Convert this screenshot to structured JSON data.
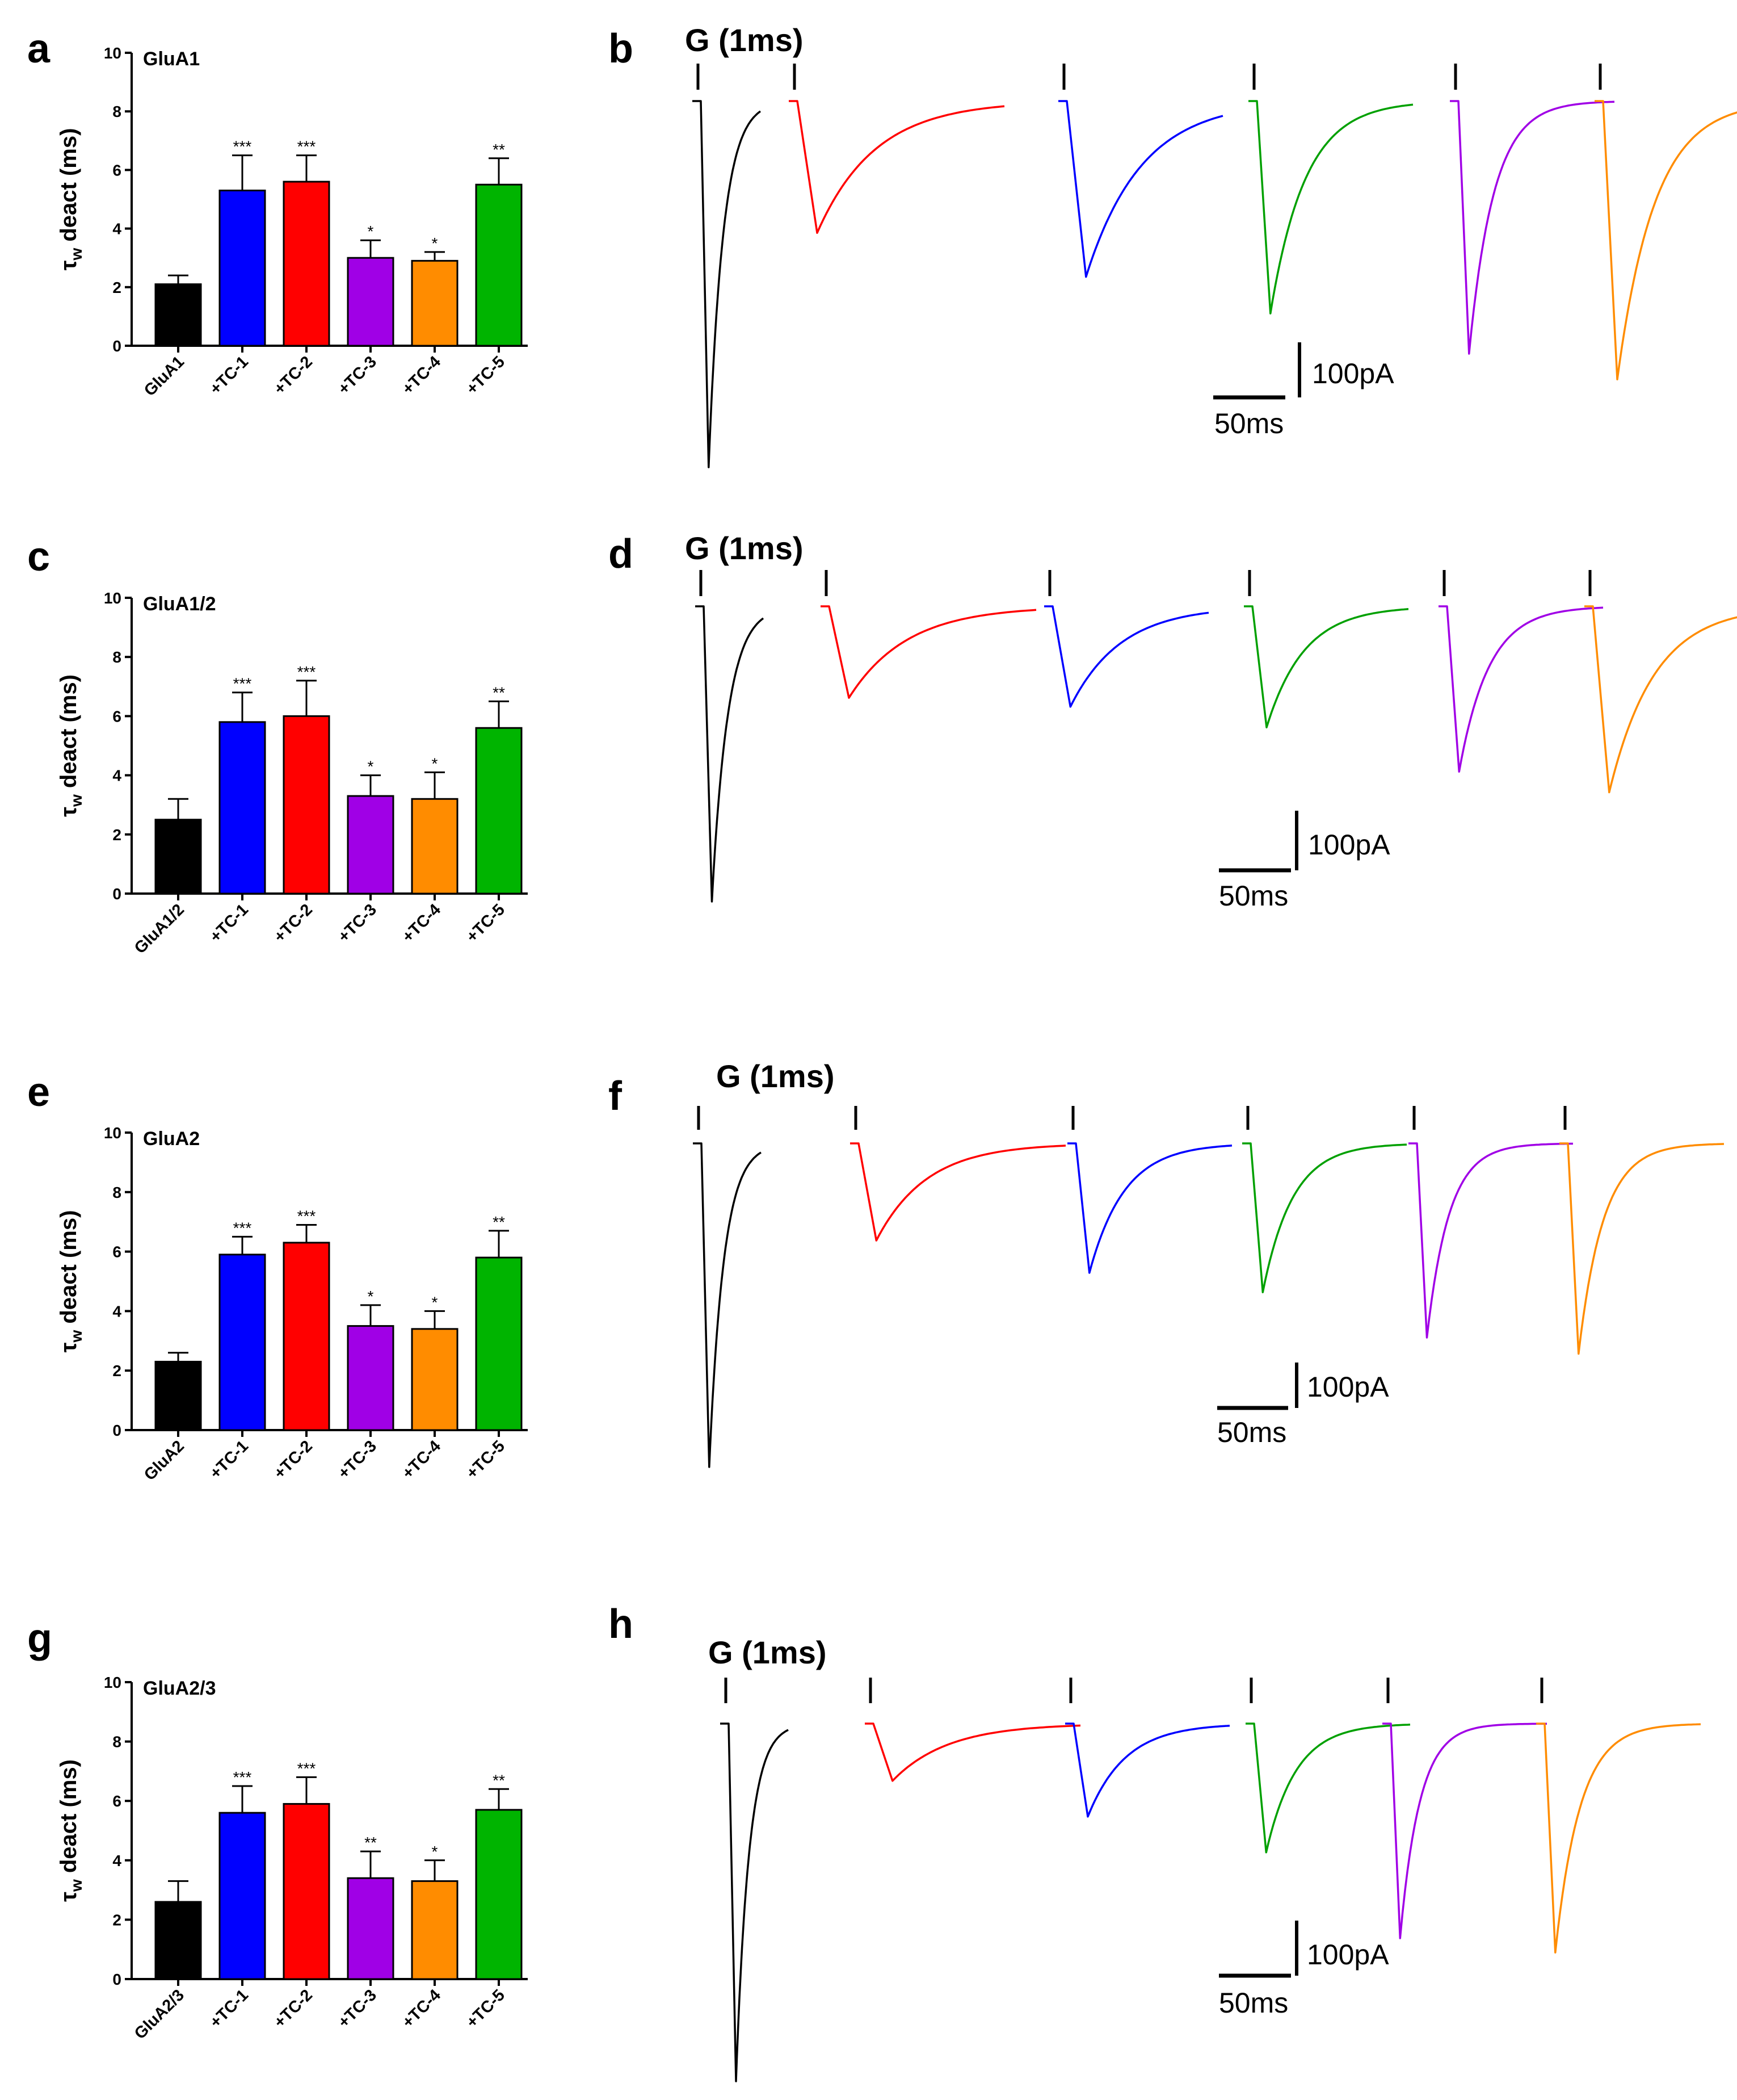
{
  "chart_data": [
    {
      "panel": "a",
      "type": "bar",
      "title": "GluA1",
      "ylabel": "τw deact (ms)",
      "ylabel_main": "τ",
      "ylabel_sub": "w",
      "ylabel_rest": " deact (ms)",
      "ylim": [
        0,
        10
      ],
      "yticks": [
        "0",
        "2",
        "4",
        "6",
        "8",
        "10"
      ],
      "categories": [
        "GluA1",
        "+TC-1",
        "+TC-2",
        "+TC-3",
        "+TC-4",
        "+TC-5"
      ],
      "values": [
        2.1,
        5.3,
        5.6,
        3.0,
        2.9,
        5.5
      ],
      "errors": [
        0.3,
        1.2,
        0.9,
        0.6,
        0.3,
        0.9
      ],
      "significance": [
        "",
        "***",
        "***",
        "*",
        "*",
        "**"
      ],
      "colors": [
        "#000000",
        "#0000ff",
        "#ff0000",
        "#a000e6",
        "#ff8c00",
        "#00b400"
      ]
    },
    {
      "panel": "c",
      "type": "bar",
      "title": "GluA1/2",
      "ylabel": "τw deact (ms)",
      "ylabel_main": "τ",
      "ylabel_sub": "w",
      "ylabel_rest": " deact (ms)",
      "ylim": [
        0,
        10
      ],
      "yticks": [
        "0",
        "2",
        "4",
        "6",
        "8",
        "10"
      ],
      "categories": [
        "GluA1/2",
        "+TC-1",
        "+TC-2",
        "+TC-3",
        "+TC-4",
        "+TC-5"
      ],
      "values": [
        2.5,
        5.8,
        6.0,
        3.3,
        3.2,
        5.6
      ],
      "errors": [
        0.7,
        1.0,
        1.2,
        0.7,
        0.9,
        0.9
      ],
      "significance": [
        "",
        "***",
        "***",
        "*",
        "*",
        "**"
      ],
      "colors": [
        "#000000",
        "#0000ff",
        "#ff0000",
        "#a000e6",
        "#ff8c00",
        "#00b400"
      ]
    },
    {
      "panel": "e",
      "type": "bar",
      "title": "GluA2",
      "ylabel": "τw deact (ms)",
      "ylabel_main": "τ",
      "ylabel_sub": "w",
      "ylabel_rest": " deact (ms)",
      "ylim": [
        0,
        10
      ],
      "yticks": [
        "0",
        "2",
        "4",
        "6",
        "8",
        "10"
      ],
      "categories": [
        "GluA2",
        "+TC-1",
        "+TC-2",
        "+TC-3",
        "+TC-4",
        "+TC-5"
      ],
      "values": [
        2.3,
        5.9,
        6.3,
        3.5,
        3.4,
        5.8
      ],
      "errors": [
        0.3,
        0.6,
        0.6,
        0.7,
        0.6,
        0.9
      ],
      "significance": [
        "",
        "***",
        "***",
        "*",
        "*",
        "**"
      ],
      "colors": [
        "#000000",
        "#0000ff",
        "#ff0000",
        "#a000e6",
        "#ff8c00",
        "#00b400"
      ]
    },
    {
      "panel": "g",
      "type": "bar",
      "title": "GluA2/3",
      "ylabel": "τw deact (ms)",
      "ylabel_main": "τ",
      "ylabel_sub": "w",
      "ylabel_rest": " deact (ms)",
      "ylim": [
        0,
        10
      ],
      "yticks": [
        "0",
        "2",
        "4",
        "6",
        "8",
        "10"
      ],
      "categories": [
        "GluA2/3",
        "+TC-1",
        "+TC-2",
        "+TC-3",
        "+TC-4",
        "+TC-5"
      ],
      "values": [
        2.6,
        5.6,
        5.9,
        3.4,
        3.3,
        5.7
      ],
      "errors": [
        0.7,
        0.9,
        0.9,
        0.9,
        0.7,
        0.7
      ],
      "significance": [
        "",
        "***",
        "***",
        "**",
        "*",
        "**"
      ],
      "colors": [
        "#000000",
        "#0000ff",
        "#ff0000",
        "#a000e6",
        "#ff8c00",
        "#00b400"
      ]
    },
    {
      "panel": "b",
      "type": "line",
      "title": "G (1ms)",
      "description_units": "current traces",
      "scale_current": "100pA",
      "scale_time": "50ms",
      "trace_colors": [
        "#000000",
        "#ff0000",
        "#0000ff",
        "#00a000",
        "#a000e6",
        "#ff8c00"
      ],
      "peak_amplitudes_fraction": [
        1.0,
        0.36,
        0.48,
        0.58,
        0.69,
        0.76
      ],
      "decay_relative": [
        0.15,
        1.0,
        0.95,
        0.55,
        0.35,
        0.6
      ]
    },
    {
      "panel": "d",
      "type": "line",
      "title": "G (1ms)",
      "scale_current": "100pA",
      "scale_time": "50ms",
      "trace_colors": [
        "#000000",
        "#ff0000",
        "#0000ff",
        "#00a000",
        "#a000e6",
        "#ff8c00"
      ],
      "peak_amplitudes_fraction": [
        1.0,
        0.31,
        0.34,
        0.41,
        0.56,
        0.63
      ],
      "decay_relative": [
        0.18,
        1.0,
        0.85,
        0.6,
        0.45,
        0.75
      ]
    },
    {
      "panel": "f",
      "type": "line",
      "title": "G (1ms)",
      "scale_current": "100pA",
      "scale_time": "50ms",
      "trace_colors": [
        "#000000",
        "#ff0000",
        "#0000ff",
        "#00a000",
        "#a000e6",
        "#ff8c00"
      ],
      "peak_amplitudes_fraction": [
        1.0,
        0.3,
        0.4,
        0.46,
        0.6,
        0.65
      ],
      "decay_relative": [
        0.15,
        0.85,
        0.55,
        0.45,
        0.3,
        0.35
      ]
    },
    {
      "panel": "h",
      "type": "line",
      "title": "G (1ms)",
      "scale_current": "100pA",
      "scale_time": "50ms",
      "trace_colors": [
        "#000000",
        "#ff0000",
        "#0000ff",
        "#00a000",
        "#a000e6",
        "#ff8c00"
      ],
      "peak_amplitudes_fraction": [
        1.0,
        0.16,
        0.26,
        0.36,
        0.6,
        0.64
      ],
      "decay_relative": [
        0.12,
        0.95,
        0.6,
        0.45,
        0.25,
        0.35
      ]
    }
  ],
  "panel_letters": [
    "a",
    "b",
    "c",
    "d",
    "e",
    "f",
    "g",
    "h"
  ]
}
